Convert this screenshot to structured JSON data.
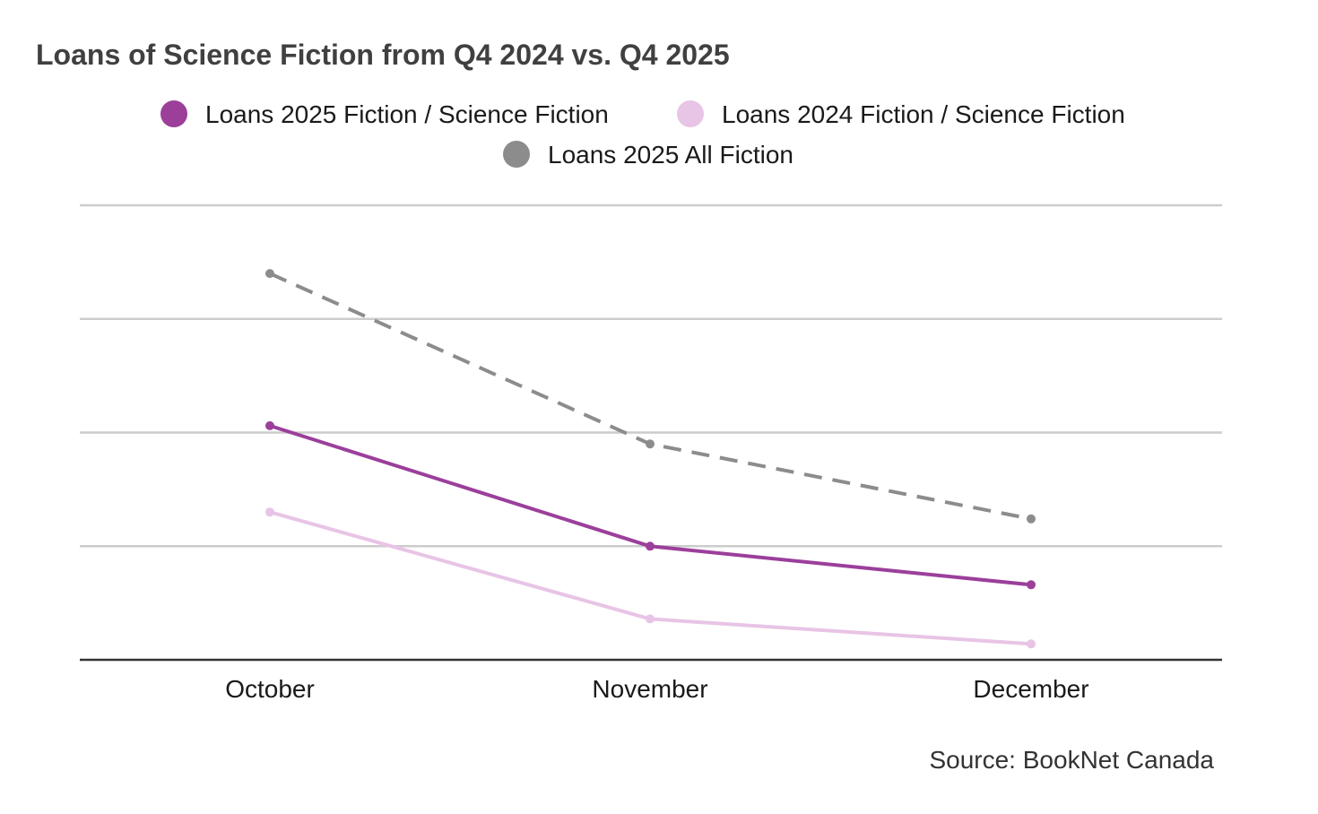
{
  "colors": {
    "sf2025": "#9b3f9b",
    "sf2024": "#e8c4e6",
    "all2025": "#8c8c8c",
    "grid": "#cccccc",
    "axis": "#333333",
    "title": "#404040",
    "text": "#1a1a1a",
    "source": "#333333"
  },
  "chart_data": {
    "type": "line",
    "title": "Loans of Science Fiction from Q4 2024 vs. Q4 2025",
    "xlabel": "",
    "ylabel": "",
    "categories": [
      "October",
      "November",
      "December"
    ],
    "ylim": [
      0,
      2
    ],
    "y_ticks_labeled": false,
    "grid": true,
    "legend_position": "top-center",
    "series": [
      {
        "name": "Loans 2025 Fiction / Science Fiction",
        "color_key": "sf2025",
        "style": "solid",
        "values": [
          1.03,
          0.5,
          0.33
        ]
      },
      {
        "name": "Loans 2024 Fiction / Science Fiction",
        "color_key": "sf2024",
        "style": "solid",
        "values": [
          0.65,
          0.18,
          0.07
        ]
      },
      {
        "name": "Loans 2025 All Fiction",
        "color_key": "all2025",
        "style": "dashed",
        "values": [
          1.7,
          0.95,
          0.62
        ]
      }
    ],
    "source": "Source: BookNet Canada"
  }
}
